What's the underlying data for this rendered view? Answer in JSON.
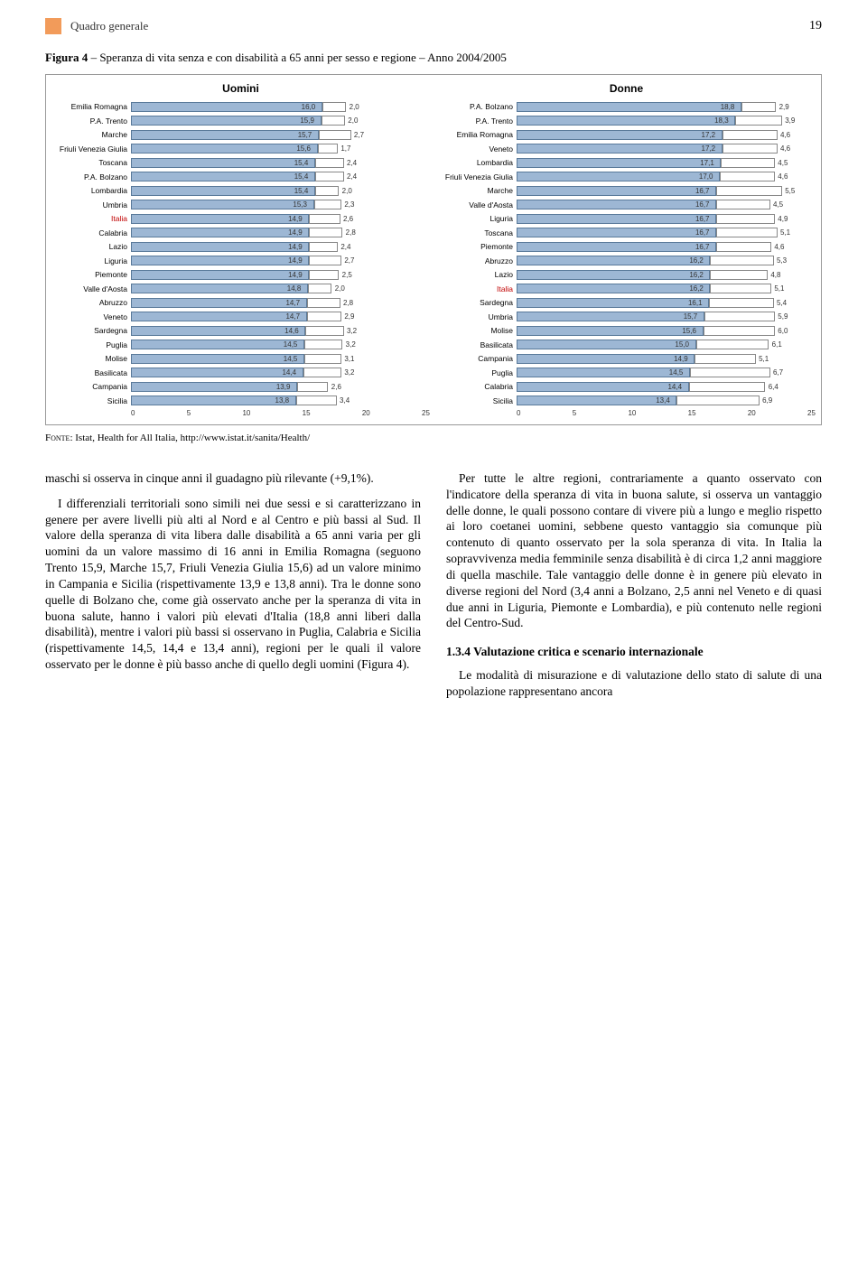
{
  "header": {
    "section": "Quadro generale",
    "page": "19"
  },
  "fig": {
    "label": "Figura 4",
    "title": "Speranza di vita senza e con disabilità a 65 anni per sesso e regione – Anno 2004/2005"
  },
  "chart": {
    "max": 25,
    "ticks": [
      "0",
      "5",
      "10",
      "15",
      "20",
      "25"
    ],
    "panels": [
      {
        "title": "Uomini",
        "rows": [
          {
            "l": "Emilia Romagna",
            "a": 16.0,
            "b": 2.0
          },
          {
            "l": "P.A. Trento",
            "a": 15.9,
            "b": 2.0
          },
          {
            "l": "Marche",
            "a": 15.7,
            "b": 2.7
          },
          {
            "l": "Friuli Venezia Giulia",
            "a": 15.6,
            "b": 1.7
          },
          {
            "l": "Toscana",
            "a": 15.4,
            "b": 2.4
          },
          {
            "l": "P.A. Bolzano",
            "a": 15.4,
            "b": 2.4
          },
          {
            "l": "Lombardia",
            "a": 15.4,
            "b": 2.0
          },
          {
            "l": "Umbria",
            "a": 15.3,
            "b": 2.3
          },
          {
            "l": "Italia",
            "a": 14.9,
            "b": 2.6,
            "it": true
          },
          {
            "l": "Calabria",
            "a": 14.9,
            "b": 2.8
          },
          {
            "l": "Lazio",
            "a": 14.9,
            "b": 2.4
          },
          {
            "l": "Liguria",
            "a": 14.9,
            "b": 2.7
          },
          {
            "l": "Piemonte",
            "a": 14.9,
            "b": 2.5
          },
          {
            "l": "Valle d'Aosta",
            "a": 14.8,
            "b": 2.0
          },
          {
            "l": "Abruzzo",
            "a": 14.7,
            "b": 2.8
          },
          {
            "l": "Veneto",
            "a": 14.7,
            "b": 2.9
          },
          {
            "l": "Sardegna",
            "a": 14.6,
            "b": 3.2
          },
          {
            "l": "Puglia",
            "a": 14.5,
            "b": 3.2
          },
          {
            "l": "Molise",
            "a": 14.5,
            "b": 3.1
          },
          {
            "l": "Basilicata",
            "a": 14.4,
            "b": 3.2
          },
          {
            "l": "Campania",
            "a": 13.9,
            "b": 2.6
          },
          {
            "l": "Sicilia",
            "a": 13.8,
            "b": 3.4
          }
        ]
      },
      {
        "title": "Donne",
        "rows": [
          {
            "l": "P.A. Bolzano",
            "a": 18.8,
            "b": 2.9
          },
          {
            "l": "P.A. Trento",
            "a": 18.3,
            "b": 3.9
          },
          {
            "l": "Emilia Romagna",
            "a": 17.2,
            "b": 4.6
          },
          {
            "l": "Veneto",
            "a": 17.2,
            "b": 4.6
          },
          {
            "l": "Lombardia",
            "a": 17.1,
            "b": 4.5
          },
          {
            "l": "Friuli Venezia Giulia",
            "a": 17.0,
            "b": 4.6
          },
          {
            "l": "Marche",
            "a": 16.7,
            "b": 5.5
          },
          {
            "l": "Valle d'Aosta",
            "a": 16.7,
            "b": 4.5
          },
          {
            "l": "Liguria",
            "a": 16.7,
            "b": 4.9
          },
          {
            "l": "Toscana",
            "a": 16.7,
            "b": 5.1
          },
          {
            "l": "Piemonte",
            "a": 16.7,
            "b": 4.6
          },
          {
            "l": "Abruzzo",
            "a": 16.2,
            "b": 5.3
          },
          {
            "l": "Lazio",
            "a": 16.2,
            "b": 4.8
          },
          {
            "l": "Italia",
            "a": 16.2,
            "b": 5.1,
            "it": true
          },
          {
            "l": "Sardegna",
            "a": 16.1,
            "b": 5.4
          },
          {
            "l": "Umbria",
            "a": 15.7,
            "b": 5.9
          },
          {
            "l": "Molise",
            "a": 15.6,
            "b": 6.0
          },
          {
            "l": "Basilicata",
            "a": 15.0,
            "b": 6.1
          },
          {
            "l": "Campania",
            "a": 14.9,
            "b": 5.1
          },
          {
            "l": "Puglia",
            "a": 14.5,
            "b": 6.7
          },
          {
            "l": "Calabria",
            "a": 14.4,
            "b": 6.4
          },
          {
            "l": "Sicilia",
            "a": 13.4,
            "b": 6.9
          }
        ]
      }
    ]
  },
  "source": {
    "label": "Fonte:",
    "text": "Istat, Health for All Italia, http://www.istat.it/sanita/Health/"
  },
  "body": {
    "p1": "maschi si osserva in cinque anni il guadagno più rilevante (+9,1%).",
    "p2": "I differenziali territoriali sono simili nei due sessi e si caratterizzano in genere per avere livelli più alti al Nord e al Centro e più bassi al Sud. Il valore della speranza di vita libera dalle disabilità a 65 anni varia per gli uomini da un valore massimo di 16 anni in Emilia Romagna (seguono Trento 15,9, Marche 15,7, Friuli Venezia Giulia 15,6) ad un valore minimo in Campania e Sicilia (rispettivamente 13,9 e 13,8 anni). Tra le donne sono quelle di Bolzano che, come già osservato anche per la speranza di vita in buona salute, hanno i valori più elevati d'Italia (18,8 anni liberi dalla disabilità), mentre i valori più bassi si osservano in Puglia, Calabria e Sicilia (rispettivamente 14,5, 14,4 e 13,4 anni), regioni per le quali il valore osservato per le donne è più basso anche di quello degli uomini (Figura 4).",
    "p3": "Per tutte le altre regioni, contrariamente a quanto osservato con l'indicatore della speranza di vita in buona salute, si osserva un vantaggio delle donne, le quali possono contare di vivere più a lungo e meglio rispetto ai loro coetanei uomini, sebbene questo vantaggio sia comunque più contenuto di quanto osservato per la sola speranza di vita. In Italia la sopravvivenza media femminile senza disabilità è di circa 1,2 anni maggiore di quella maschile. Tale vantaggio delle donne è in genere più elevato in diverse regioni del Nord (3,4 anni a Bolzano, 2,5 anni nel Veneto e di quasi due anni in Liguria, Piemonte e Lombardia), e più contenuto nelle regioni del Centro-Sud.",
    "h": "1.3.4 Valutazione critica e scenario internazionale",
    "p4": "Le modalità di misurazione e di valutazione dello stato di salute di una popolazione rappresentano ancora"
  }
}
